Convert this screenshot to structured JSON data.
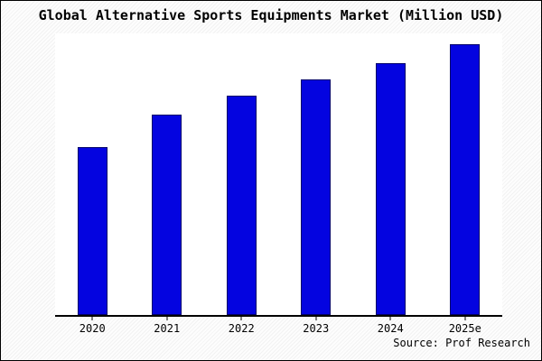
{
  "chart_data": {
    "type": "bar",
    "title": "Global Alternative Sports Equipments Market (Million USD)",
    "categories": [
      "2020",
      "2021",
      "2022",
      "2023",
      "2024",
      "2025e"
    ],
    "values": [
      62,
      74,
      81,
      87,
      93,
      100
    ],
    "value_note": "y-axis has no tick labels; values are relative estimates with 2025e = 100",
    "xlabel": "",
    "ylabel": "",
    "ylim": [
      0,
      104
    ],
    "grid": false,
    "legend": false,
    "bar_color": "#0404e0",
    "bar_edge_color": "#00006a"
  },
  "footer": {
    "source": "Source: Prof Research"
  }
}
